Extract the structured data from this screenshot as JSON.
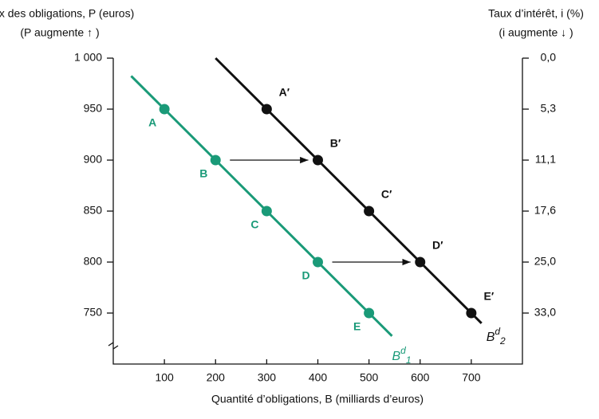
{
  "chart_data": {
    "type": "line",
    "y_title": [
      "Prix des obligations, P (euros)",
      "(P augmente ↑ )"
    ],
    "y2_title": [
      "Taux d’intérêt, i (%)",
      "(i augmente ↓ )"
    ],
    "x_title": "Quantité d’obligations, B (milliards d’euros)",
    "xlim": [
      0,
      800
    ],
    "ylim": [
      700,
      1000
    ],
    "xticks": [
      100,
      200,
      300,
      400,
      500,
      600,
      700
    ],
    "yticks": [
      {
        "value": 1000,
        "label": "1 000"
      },
      950,
      900,
      850,
      800,
      750
    ],
    "y2ticks": [
      {
        "value": 0,
        "label": "0,0"
      },
      {
        "value": 5.3,
        "label": "5,3"
      },
      {
        "value": 11.1,
        "label": "11,1"
      },
      {
        "value": 17.6,
        "label": "17,6"
      },
      {
        "value": 25,
        "label": "25,0"
      },
      {
        "value": 33,
        "label": "33,0"
      }
    ],
    "series": [
      {
        "name": "Bd1",
        "color": "#1a9a78",
        "x": [
          35,
          100,
          200,
          300,
          400,
          500,
          545
        ],
        "values": [
          982.5,
          950,
          900,
          850,
          800,
          750,
          727.5
        ],
        "point_labels": [
          null,
          "A",
          "B",
          "C",
          "D",
          "E",
          null
        ]
      },
      {
        "name": "Bd2",
        "color": "#111111",
        "x": [
          200,
          300,
          400,
          500,
          600,
          700,
          720
        ],
        "values": [
          1000,
          950,
          900,
          850,
          800,
          750,
          740
        ],
        "point_labels": [
          null,
          "A′",
          "B′",
          "C′",
          "D′",
          "E′",
          null
        ]
      }
    ]
  }
}
